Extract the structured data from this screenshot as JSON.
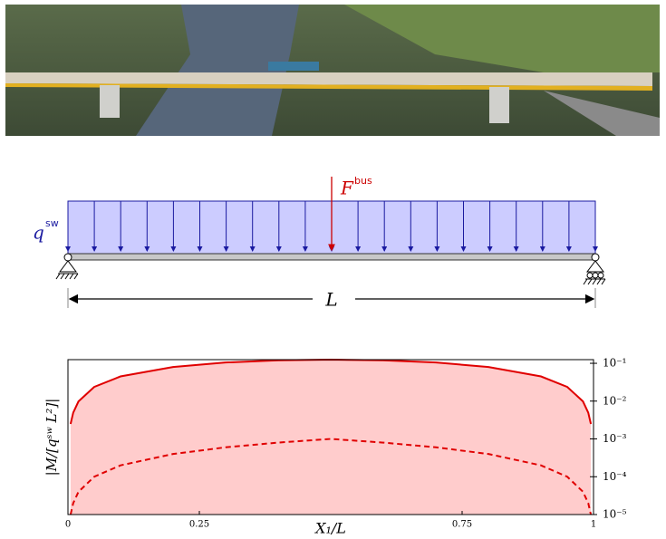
{
  "diagram": {
    "load_base": "q",
    "load_sup": "sw",
    "force_base": "F",
    "force_sup": "bus",
    "span": "L"
  },
  "chart_data": {
    "type": "line",
    "xlabel": "X₁/L",
    "ylabel": "|M/[qˢʷ L²]|",
    "x": [
      0.005,
      0.01,
      0.02,
      0.05,
      0.1,
      0.2,
      0.3,
      0.4,
      0.5,
      0.6,
      0.7,
      0.8,
      0.9,
      0.95,
      0.98,
      0.99,
      0.995
    ],
    "series": [
      {
        "color": "#e00000",
        "dash": false,
        "fill": "#ffcccc",
        "values": [
          0.0024875,
          0.00495,
          0.0098,
          0.02375,
          0.045,
          0.08,
          0.105,
          0.12,
          0.125,
          0.12,
          0.105,
          0.08,
          0.045,
          0.02375,
          0.0098,
          0.00495,
          0.0024875
        ]
      },
      {
        "color": "#e00000",
        "dash": true,
        "values": [
          1e-05,
          2e-05,
          4e-05,
          0.0001,
          0.0002,
          0.0004,
          0.0006,
          0.0008,
          0.001,
          0.0008,
          0.0006,
          0.0004,
          0.0002,
          0.0001,
          4e-05,
          2e-05,
          1e-05
        ]
      }
    ],
    "xlim": [
      0,
      1
    ],
    "xticks": [
      0,
      0.25,
      0.75,
      1
    ],
    "ylim": [
      1e-05,
      0.125
    ],
    "log_y": true,
    "y_axis_side": "right",
    "yticks": [
      {
        "value": 1e-05,
        "label": "10⁻⁵"
      },
      {
        "value": 0.0001,
        "label": "10⁻⁴"
      },
      {
        "value": 0.001,
        "label": "10⁻³"
      },
      {
        "value": 0.01,
        "label": "10⁻²"
      },
      {
        "value": 0.1,
        "label": "10⁻¹"
      }
    ]
  }
}
